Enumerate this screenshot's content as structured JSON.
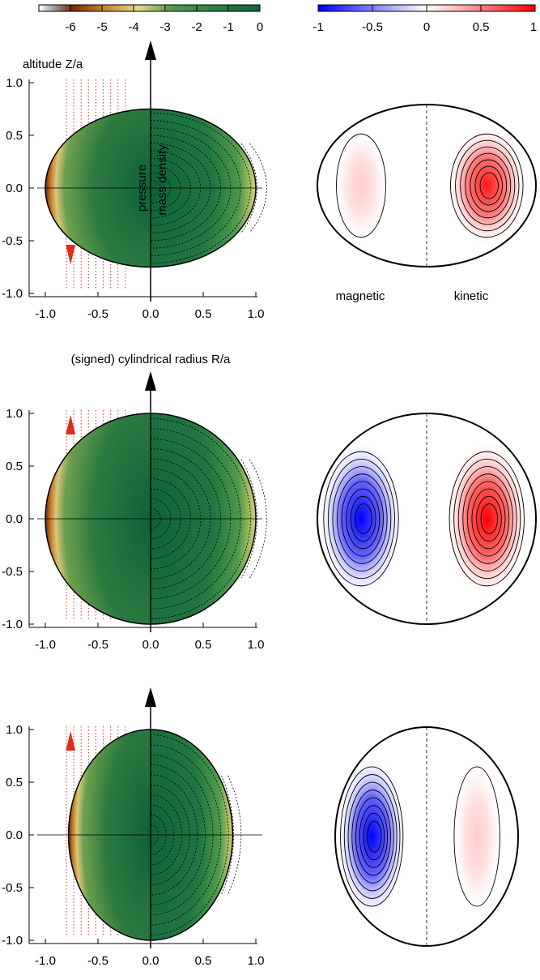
{
  "colorbar_left": {
    "ticks": [
      "-6",
      "-5",
      "-4",
      "-3",
      "-2",
      "-1",
      "0"
    ],
    "tick_values": [
      -6,
      -5,
      -4,
      -3,
      -2,
      -1,
      0
    ],
    "range": [
      -7,
      0
    ],
    "colors": [
      "#ffffff",
      "#7a2a08",
      "#c9862a",
      "#e6d98a",
      "#4f9a4d",
      "#0d6338"
    ]
  },
  "colorbar_right": {
    "ticks": [
      "-1",
      "-0.5",
      "0",
      "0.5",
      "1"
    ],
    "tick_values": [
      -1,
      -0.5,
      0,
      0.5,
      1
    ],
    "range": [
      -1,
      1
    ],
    "colors": [
      "#0000ff",
      "#ffffff",
      "#ff0000"
    ]
  },
  "left_panels": {
    "y_label": "altitude Z/a",
    "x_label": "(signed) cylindrical radius R/a",
    "x_ticks": [
      "-1.0",
      "-0.5",
      "0.0",
      "0.5",
      "1.0"
    ],
    "y_ticks": [
      "1.0",
      "0.5",
      "0.0",
      "-0.5",
      "-1.0"
    ],
    "annotation_pressure": "pressure",
    "annotation_density": "mass density",
    "panels": [
      {
        "semi_axis_r": 1.0,
        "semi_axis_z": 0.75,
        "arrow": "down"
      },
      {
        "semi_axis_r": 1.0,
        "semi_axis_z": 1.0,
        "arrow": "up"
      },
      {
        "semi_axis_r": 0.78,
        "semi_axis_z": 1.0,
        "arrow": "up"
      }
    ]
  },
  "right_panels": {
    "label_magnetic": "magnetic",
    "label_kinetic": "kinetic",
    "panels": [
      {
        "magnetic_amplitude": 0.15,
        "kinetic_amplitude": 0.9
      },
      {
        "magnetic_amplitude": -1.0,
        "kinetic_amplitude": 1.0
      },
      {
        "magnetic_amplitude": -1.0,
        "kinetic_amplitude": 0.1
      }
    ]
  }
}
